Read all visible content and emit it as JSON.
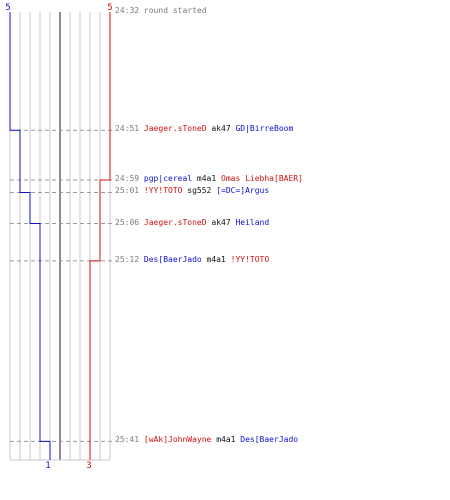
{
  "teams": [
    {
      "name": "blue",
      "color": "#1010cc",
      "start_score": "5",
      "end_score": "1",
      "start_players": 5
    },
    {
      "name": "red",
      "color": "#cc1010",
      "start_score": "5",
      "end_score": "3",
      "start_players": 5
    }
  ],
  "time_range": {
    "start": "24:32",
    "end": "25:44"
  },
  "events": [
    {
      "time": "24:32",
      "text": "round started"
    },
    {
      "time": "24:51",
      "killer": "Jaeger.sToneD",
      "killer_team": "red",
      "weapon": "ak47",
      "victim": "GD|BirreBoom",
      "victim_team": "blue",
      "blue_alive": 4,
      "red_alive": 5
    },
    {
      "time": "24:59",
      "killer": "pgp|cereal",
      "killer_team": "blue",
      "weapon": "m4a1",
      "victim": "Omas Liebha[BAER]",
      "victim_team": "red",
      "blue_alive": 4,
      "red_alive": 4
    },
    {
      "time": "25:01",
      "killer": "!YY!TOTO",
      "killer_team": "red",
      "weapon": "sg552",
      "victim": "[=DC=]Argus",
      "victim_team": "blue",
      "blue_alive": 3,
      "red_alive": 4
    },
    {
      "time": "25:06",
      "killer": "Jaeger.sToneD",
      "killer_team": "red",
      "weapon": "ak47",
      "victim": "Heiland",
      "victim_team": "blue",
      "blue_alive": 2,
      "red_alive": 4
    },
    {
      "time": "25:12",
      "killer": "Des[BaerJado",
      "killer_team": "blue",
      "weapon": "m4a1",
      "victim": "!YY!TOTO",
      "victim_team": "red",
      "blue_alive": 2,
      "red_alive": 3
    },
    {
      "time": "25:41",
      "killer": "[wAk]JohnWayne",
      "killer_team": "red",
      "weapon": "m4a1",
      "victim": "Des[BaerJado",
      "victim_team": "blue",
      "blue_alive": 1,
      "red_alive": 3
    }
  ]
}
